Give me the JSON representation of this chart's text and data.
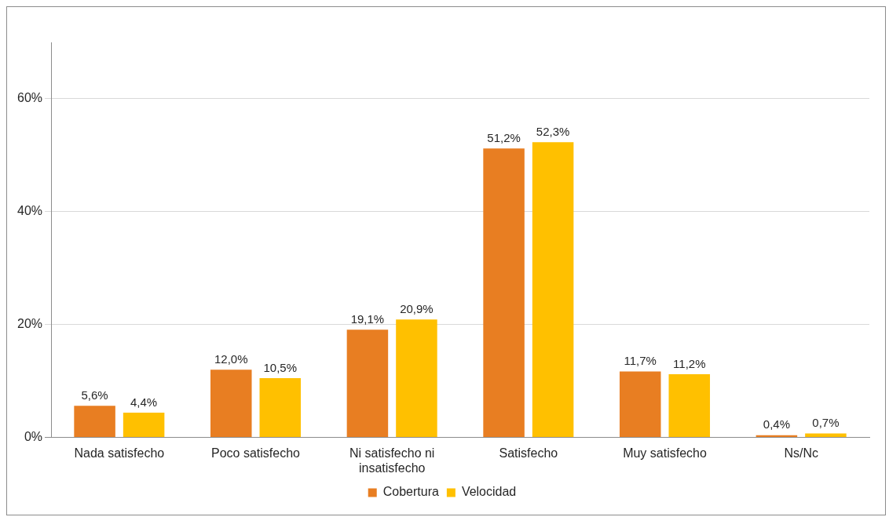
{
  "chart_data": {
    "type": "bar",
    "categories": [
      "Nada satisfecho",
      "Poco satisfecho",
      "Ni satisfecho ni insatisfecho",
      "Satisfecho",
      "Muy satisfecho",
      "Ns/Nc"
    ],
    "series": [
      {
        "name": "Cobertura",
        "color": "#e87e22",
        "values": [
          5.6,
          12.0,
          19.1,
          51.2,
          11.7,
          0.4
        ],
        "value_labels": [
          "5,6%",
          "12,0%",
          "19,1%",
          "51,2%",
          "11,7%",
          "0,4%"
        ]
      },
      {
        "name": "Velocidad",
        "color": "#ffc000",
        "values": [
          4.4,
          10.5,
          20.9,
          52.3,
          11.2,
          0.7
        ],
        "value_labels": [
          "4,4%",
          "10,5%",
          "20,9%",
          "52,3%",
          "11,2%",
          "0,7%"
        ]
      }
    ],
    "ylim": [
      0,
      70
    ],
    "yticks": [
      {
        "value": 0,
        "label": "0%"
      },
      {
        "value": 20,
        "label": "20%"
      },
      {
        "value": 40,
        "label": "40%"
      },
      {
        "value": 60,
        "label": "60%"
      }
    ],
    "grid": "y",
    "legend": "bottom"
  }
}
